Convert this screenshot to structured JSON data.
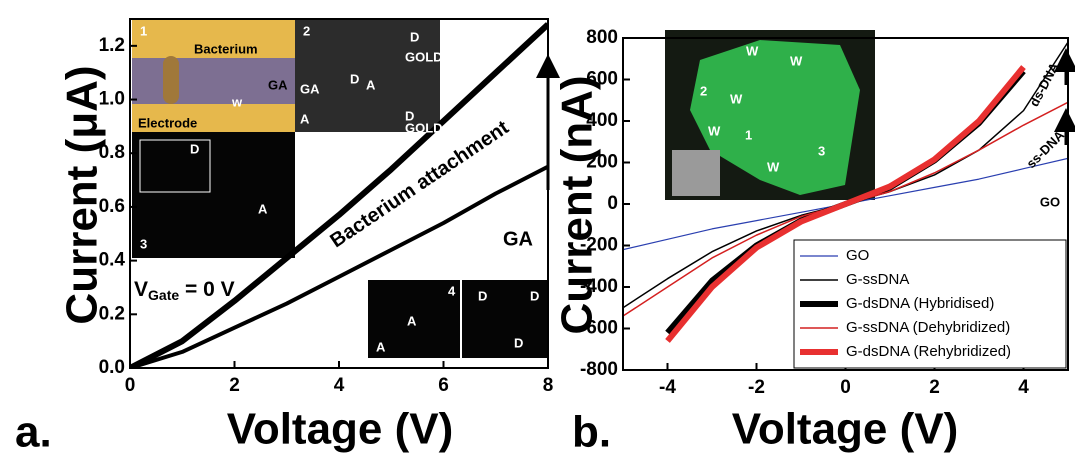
{
  "chart_data": [
    {
      "type": "line",
      "panel_label": "a.",
      "x_label": "Voltage (V)",
      "y_label": "Current (μA)",
      "x": [
        0,
        1,
        2,
        3,
        4,
        5,
        6,
        7,
        8
      ],
      "series": [
        {
          "name": "Bacterium attachment",
          "color": "#000000",
          "line_width": 6,
          "values": [
            0,
            0.1,
            0.25,
            0.41,
            0.57,
            0.74,
            0.92,
            1.1,
            1.28
          ]
        },
        {
          "name": "GA",
          "color": "#000000",
          "line_width": 4,
          "values": [
            0,
            0.06,
            0.15,
            0.24,
            0.34,
            0.44,
            0.54,
            0.65,
            0.75
          ]
        }
      ],
      "xlim": [
        0,
        8
      ],
      "ylim": [
        0,
        1.3
      ],
      "xticks": [
        0,
        2,
        4,
        6,
        8
      ],
      "yticks": [
        {
          "value": 0,
          "label": "0.0"
        },
        0.2,
        0.4,
        0.6,
        0.8,
        {
          "value": 1,
          "label": "1.0"
        },
        1.2
      ],
      "gate_label": {
        "main": "V",
        "sub": "Gate",
        "rest": " = 0 V"
      },
      "insets": [
        {
          "texts": [
            "1",
            "Bacterium",
            "GA",
            "Electrode",
            "w"
          ]
        },
        {
          "texts": [
            "2",
            "D",
            "D",
            "GOLD",
            "GA",
            "A",
            "A",
            "D",
            "GOLD"
          ]
        },
        {
          "texts": [
            "D",
            "A",
            "3"
          ]
        },
        {
          "texts": [
            "4",
            "A",
            "A",
            "D",
            "D",
            "D"
          ]
        }
      ]
    },
    {
      "type": "line",
      "panel_label": "b.",
      "x_label": "Voltage (V)",
      "y_label": "Current (nA)",
      "x": [
        -5,
        -4,
        -3,
        -2,
        -1,
        0,
        1,
        2,
        3,
        4,
        5
      ],
      "series": [
        {
          "name": "GO",
          "color": "#2a3fb0",
          "line_width": 1.2,
          "values": [
            -220,
            -170,
            -120,
            -80,
            -40,
            0,
            40,
            80,
            120,
            170,
            220
          ]
        },
        {
          "name": "G-ssDNA",
          "color": "#000000",
          "line_width": 1.5,
          "values": [
            -500,
            -360,
            -230,
            -130,
            -55,
            0,
            60,
            140,
            260,
            450,
            780
          ]
        },
        {
          "name": "G-dsDNA (Hybridised)",
          "color": "#000000",
          "line_width": 6,
          "values": [
            null,
            -620,
            -370,
            -200,
            -80,
            0,
            80,
            210,
            390,
            640,
            null
          ]
        },
        {
          "name": "G-ssDNA (Dehybridized)",
          "color": "#d42020",
          "line_width": 1.5,
          "values": [
            -540,
            -400,
            -260,
            -150,
            -60,
            0,
            60,
            150,
            260,
            380,
            490
          ]
        },
        {
          "name": "G-dsDNA (Rehybridized)",
          "color": "#e83030",
          "line_width": 6,
          "values": [
            null,
            -660,
            -400,
            -210,
            -85,
            0,
            85,
            215,
            400,
            660,
            null
          ]
        }
      ],
      "xlim": [
        -5,
        5
      ],
      "ylim": [
        -800,
        800
      ],
      "xticks": [
        -4,
        -2,
        0,
        2,
        4
      ],
      "yticks": [
        -800,
        -600,
        -400,
        -200,
        0,
        200,
        400,
        600,
        800
      ],
      "legend": "lower right",
      "annotations": [
        "ds-DNA",
        "ss-DNA",
        "GO"
      ],
      "insets": [
        {
          "texts": [
            "W",
            "W",
            "2",
            "W",
            "W",
            "1",
            "3",
            "W"
          ]
        }
      ]
    }
  ]
}
